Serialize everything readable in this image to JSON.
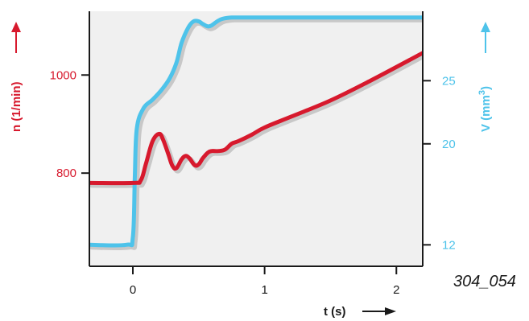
{
  "figure_id": "304_054",
  "colors": {
    "n_series": "#d7192d",
    "v_series": "#4ec3ea",
    "plot_bg": "#f0f0f0",
    "axis": "#1a1a1a",
    "shadow": "#c8c8c8"
  },
  "chart_data": {
    "type": "line",
    "x_axis": {
      "label": "t (s)",
      "ticks": [
        0,
        1,
        2
      ],
      "range": [
        -0.33,
        2.2
      ]
    },
    "y_left": {
      "label": "n (1/min)",
      "ticks": [
        800,
        1000
      ],
      "range": [
        610,
        1130
      ]
    },
    "y_right": {
      "label": "V (mm3)",
      "ticks": [
        12,
        20,
        25
      ],
      "tick_positions": [
        12,
        20,
        25
      ],
      "range": [
        10.3,
        30.5
      ]
    },
    "series": [
      {
        "axis": "left",
        "color": "#d7192d",
        "x": [
          -0.33,
          0.0,
          0.06,
          0.1,
          0.15,
          0.2,
          0.23,
          0.27,
          0.3,
          0.33,
          0.37,
          0.4,
          0.43,
          0.47,
          0.5,
          0.53,
          0.57,
          0.6,
          0.65,
          0.7,
          0.75,
          0.8,
          0.9,
          1.0,
          1.2,
          1.5,
          1.8,
          2.2
        ],
        "y": [
          780,
          780,
          785,
          820,
          865,
          880,
          868,
          838,
          815,
          810,
          828,
          835,
          830,
          816,
          818,
          830,
          842,
          845,
          845,
          848,
          860,
          865,
          878,
          893,
          915,
          948,
          988,
          1045
        ]
      },
      {
        "axis": "right",
        "color": "#4ec3ea",
        "x": [
          -0.33,
          -0.05,
          0.0,
          0.015,
          0.03,
          0.08,
          0.15,
          0.22,
          0.28,
          0.33,
          0.37,
          0.42,
          0.46,
          0.5,
          0.53,
          0.57,
          0.6,
          0.64,
          0.68,
          0.75,
          0.85,
          1.0,
          1.5,
          2.2
        ],
        "y": [
          12.0,
          12.0,
          12.6,
          17.5,
          21.2,
          22.8,
          23.5,
          24.3,
          25.2,
          26.4,
          28.0,
          29.2,
          29.7,
          29.7,
          29.5,
          29.3,
          29.4,
          29.7,
          29.9,
          30.0,
          30.0,
          30.0,
          30.0,
          30.0
        ]
      }
    ]
  }
}
